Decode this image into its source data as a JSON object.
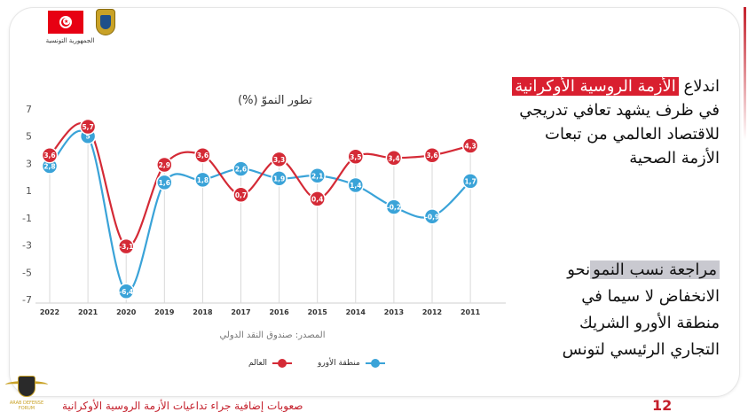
{
  "header": {
    "republic_name": "الجمهورية التونسية",
    "flag_icon": "tunisia-flag-icon",
    "emblem_icon": "tunisia-emblem-icon"
  },
  "colors": {
    "world": "#d42a36",
    "euro": "#3aa3d8",
    "accent": "#c41f2b",
    "highlight": "#d91f2f"
  },
  "chart_data": {
    "type": "line",
    "title": "تطور النموّ (%)",
    "categories": [
      "2022",
      "2021",
      "2020",
      "2019",
      "2018",
      "2017",
      "2016",
      "2015",
      "2014",
      "2013",
      "2012",
      "2011"
    ],
    "series": [
      {
        "name": "العالم",
        "values": [
          3.6,
          5.7,
          -3.1,
          2.9,
          3.6,
          0.7,
          3.3,
          0.4,
          3.5,
          3.4,
          3.6,
          4.3
        ],
        "labels": [
          "3,6",
          "5,7",
          "-3,1",
          "2,9",
          "3,6",
          "0,7",
          "3,3",
          "0,4",
          "3,5",
          "3,4",
          "3,6",
          "4,3"
        ]
      },
      {
        "name": "منطقة الأورو",
        "values": [
          2.8,
          5.0,
          -6.4,
          1.6,
          1.8,
          2.6,
          1.9,
          2.1,
          1.4,
          -0.2,
          -0.9,
          1.7
        ],
        "labels": [
          "2,8",
          "5",
          "-6,4",
          "1,6",
          "1,8",
          "2,6",
          "1,9",
          "2,1",
          "1,4",
          "-0,2",
          "-0,9",
          "1,7"
        ]
      }
    ],
    "yticks": [
      7,
      5,
      3,
      1,
      -1,
      -3,
      -5,
      -7
    ],
    "ylim": [
      -7,
      7
    ],
    "grid": false,
    "legend_position": "bottom",
    "source": "المصدر: صندوق النقد الدولي"
  },
  "text_block_1": {
    "line1_pre": "اندلاع",
    "line1_highlight": "الأزمة الروسية الأوكرانية",
    "line2": "في ظرف يشهد تعافي تدريجي",
    "line3": "للاقتصاد العالمي من تبعات",
    "line4": "الأزمة الصحية"
  },
  "text_block_2": {
    "line1_highlight": "مراجعة نسب النمو",
    "line1_post": "نحو",
    "line2": "الانخفاض لا سيما في",
    "line3": "منطقة الأورو الشريك",
    "line4": "التجاري الرئيسي لتونس"
  },
  "footer": {
    "title": "صعوبات إضافية جراء تداعيات الأزمة الروسية الأوكرانية",
    "page_number": "12",
    "watermark_text": "ARAB DEFENSE FORUM"
  }
}
